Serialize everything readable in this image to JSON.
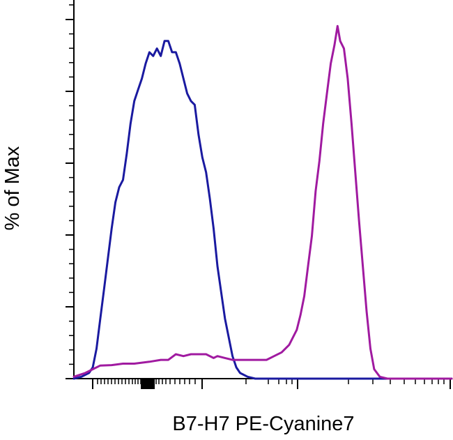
{
  "chart_data": {
    "type": "line",
    "title": "",
    "xlabel": "B7-H7 PE-Cyanine7",
    "ylabel": "% of Max",
    "xlim": [
      0,
      100
    ],
    "ylim": [
      0,
      100
    ],
    "x_scale": "biexponential",
    "grid": false,
    "legend": "none",
    "series": [
      {
        "color": "#1a1aa0",
        "points": [
          [
            0,
            0
          ],
          [
            2,
            0.5
          ],
          [
            4,
            1.5
          ],
          [
            5,
            3
          ],
          [
            6,
            8
          ],
          [
            7,
            16
          ],
          [
            8,
            24
          ],
          [
            9,
            32
          ],
          [
            10,
            40
          ],
          [
            11,
            47
          ],
          [
            12,
            51
          ],
          [
            13,
            53
          ],
          [
            14,
            60
          ],
          [
            15,
            68
          ],
          [
            16,
            74
          ],
          [
            17,
            77
          ],
          [
            18,
            80
          ],
          [
            19,
            84
          ],
          [
            20,
            87
          ],
          [
            21,
            86
          ],
          [
            22,
            88
          ],
          [
            23,
            86
          ],
          [
            24,
            90
          ],
          [
            25,
            90
          ],
          [
            26,
            87
          ],
          [
            27,
            87
          ],
          [
            28,
            84
          ],
          [
            29,
            80
          ],
          [
            30,
            76
          ],
          [
            31,
            74
          ],
          [
            32,
            73
          ],
          [
            33,
            65
          ],
          [
            34,
            59
          ],
          [
            35,
            55
          ],
          [
            36,
            48
          ],
          [
            37,
            40
          ],
          [
            38,
            30
          ],
          [
            39,
            23
          ],
          [
            40,
            16
          ],
          [
            41,
            11
          ],
          [
            42,
            6
          ],
          [
            43,
            3
          ],
          [
            44,
            1.5
          ],
          [
            46,
            0.5
          ],
          [
            48,
            0
          ],
          [
            100,
            0
          ]
        ]
      },
      {
        "color": "#a01aa0",
        "points": [
          [
            0,
            0.5
          ],
          [
            3,
            1.5
          ],
          [
            5,
            2.5
          ],
          [
            7,
            3.5
          ],
          [
            10,
            3.6
          ],
          [
            13,
            4
          ],
          [
            16,
            4
          ],
          [
            20,
            4.5
          ],
          [
            23,
            5
          ],
          [
            25,
            5
          ],
          [
            27,
            6.5
          ],
          [
            29,
            6
          ],
          [
            31,
            6.5
          ],
          [
            33,
            6.5
          ],
          [
            35,
            6.5
          ],
          [
            37,
            5.5
          ],
          [
            38,
            6
          ],
          [
            40,
            5.5
          ],
          [
            42,
            5
          ],
          [
            45,
            5
          ],
          [
            48,
            5
          ],
          [
            51,
            5
          ],
          [
            53,
            6
          ],
          [
            55,
            7
          ],
          [
            57,
            9
          ],
          [
            59,
            13
          ],
          [
            60,
            17
          ],
          [
            61,
            22
          ],
          [
            62,
            30
          ],
          [
            63,
            38
          ],
          [
            64,
            50
          ],
          [
            65,
            58
          ],
          [
            66,
            68
          ],
          [
            67,
            76
          ],
          [
            68,
            84
          ],
          [
            69,
            89
          ],
          [
            69.8,
            94
          ],
          [
            70.5,
            90
          ],
          [
            71.5,
            88
          ],
          [
            72.5,
            80
          ],
          [
            73.5,
            68
          ],
          [
            74.5,
            55
          ],
          [
            75.5,
            42
          ],
          [
            76.5,
            30
          ],
          [
            77.5,
            18
          ],
          [
            78.5,
            8
          ],
          [
            79.5,
            2.5
          ],
          [
            81,
            0.5
          ],
          [
            83,
            0
          ],
          [
            100,
            0
          ]
        ]
      }
    ]
  }
}
